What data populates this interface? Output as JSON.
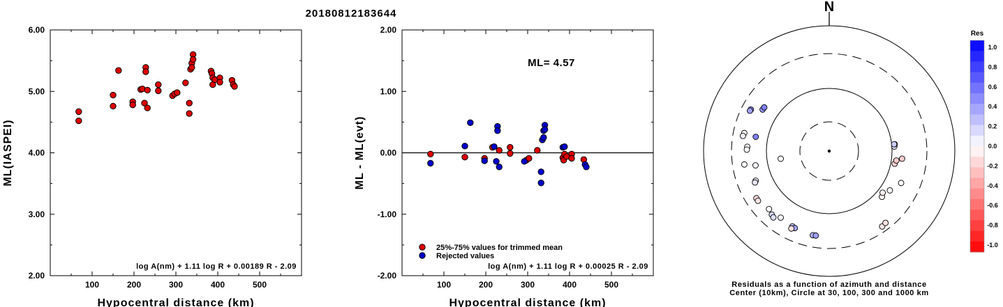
{
  "title": "20180812183644",
  "chart_data": [
    {
      "type": "scatter",
      "xlabel": "Hypocentral distance (km)",
      "ylabel": "ML(IASPEI)",
      "xlim": [
        0,
        600
      ],
      "ylim": [
        2.0,
        6.0
      ],
      "xticks": [
        "100",
        "200",
        "300",
        "400",
        "500"
      ],
      "yticks": [
        "2.00",
        "3.00",
        "4.00",
        "5.00",
        "6.00"
      ],
      "formula": "log A(nm) + 1.11 log R + 0.00189 R - 2.09",
      "point_color": "#dd0000",
      "points": [
        [
          68,
          4.67
        ],
        [
          68,
          4.52
        ],
        [
          150,
          4.94
        ],
        [
          150,
          4.76
        ],
        [
          163,
          5.34
        ],
        [
          197,
          4.83
        ],
        [
          197,
          4.78
        ],
        [
          216,
          5.03
        ],
        [
          220,
          5.04
        ],
        [
          225,
          4.81
        ],
        [
          228,
          5.39
        ],
        [
          228,
          5.32
        ],
        [
          232,
          5.02
        ],
        [
          232,
          4.73
        ],
        [
          258,
          5.11
        ],
        [
          258,
          5.01
        ],
        [
          292,
          4.93
        ],
        [
          297,
          4.96
        ],
        [
          303,
          4.98
        ],
        [
          323,
          5.14
        ],
        [
          332,
          4.81
        ],
        [
          332,
          4.64
        ],
        [
          335,
          5.36
        ],
        [
          338,
          5.46
        ],
        [
          338,
          5.39
        ],
        [
          341,
          5.6
        ],
        [
          341,
          5.52
        ],
        [
          384,
          5.33
        ],
        [
          386,
          5.29
        ],
        [
          388,
          5.22
        ],
        [
          388,
          5.11
        ],
        [
          393,
          5.19
        ],
        [
          405,
          5.22
        ],
        [
          405,
          5.15
        ],
        [
          434,
          5.18
        ],
        [
          437,
          5.11
        ],
        [
          440,
          5.08
        ]
      ]
    },
    {
      "type": "scatter",
      "xlabel": "Hypocentral distance (km)",
      "ylabel": "ML - ML(evt)",
      "xlim": [
        0,
        600
      ],
      "ylim": [
        -2.0,
        2.0
      ],
      "xticks": [
        "100",
        "200",
        "300",
        "400",
        "500"
      ],
      "yticks": [
        "-2.00",
        "-1.00",
        "0.00",
        "1.00",
        "2.00"
      ],
      "annotation": "ML= 4.57",
      "formula": "log A(nm) + 1.11 log R + 0.00025 R - 2.09",
      "legend": [
        {
          "label": "25%-75% values for trimmed mean",
          "color": "#dd0000"
        },
        {
          "label": "Rejected values",
          "color": "#0000cc"
        }
      ],
      "series": [
        {
          "name": "25%-75% values for trimmed mean",
          "color": "#dd0000",
          "points": [
            [
              68,
              -0.02
            ],
            [
              150,
              -0.07
            ],
            [
              197,
              -0.09
            ],
            [
              216,
              0.09
            ],
            [
              232,
              0.04
            ],
            [
              258,
              0.09
            ],
            [
              258,
              -0.01
            ],
            [
              297,
              -0.12
            ],
            [
              303,
              -0.09
            ],
            [
              323,
              0.04
            ],
            [
              384,
              -0.08
            ],
            [
              386,
              -0.12
            ],
            [
              388,
              -0.02
            ],
            [
              393,
              -0.06
            ],
            [
              405,
              -0.02
            ],
            [
              405,
              -0.09
            ],
            [
              434,
              -0.11
            ]
          ]
        },
        {
          "name": "Rejected values",
          "color": "#0000cc",
          "points": [
            [
              68,
              -0.17
            ],
            [
              150,
              0.11
            ],
            [
              163,
              0.49
            ],
            [
              197,
              -0.13
            ],
            [
              220,
              0.1
            ],
            [
              225,
              -0.14
            ],
            [
              228,
              0.43
            ],
            [
              228,
              0.36
            ],
            [
              232,
              -0.23
            ],
            [
              292,
              -0.14
            ],
            [
              332,
              -0.31
            ],
            [
              332,
              -0.49
            ],
            [
              335,
              0.21
            ],
            [
              338,
              0.25
            ],
            [
              338,
              0.36
            ],
            [
              341,
              0.45
            ],
            [
              341,
              0.38
            ],
            [
              384,
              0.09
            ],
            [
              388,
              0.1
            ],
            [
              437,
              -0.19
            ],
            [
              440,
              -0.23
            ]
          ]
        }
      ]
    },
    {
      "type": "scatter",
      "subtype": "polar",
      "north_label": "N",
      "caption_line1": "Residuals as a function of azimuth and distance",
      "caption_line2": "Center (10km), Circle at 30, 100, 300 and 1000 km",
      "rings": [
        {
          "label": "30",
          "style": "dashed"
        },
        {
          "label": "100",
          "style": "solid"
        },
        {
          "label": "300",
          "style": "dashed"
        },
        {
          "label": "1000",
          "style": "solid"
        }
      ],
      "colorbar": {
        "title": "Res",
        "ticks": [
          "1.0",
          "0.8",
          "0.6",
          "0.4",
          "0.2",
          "0.0",
          "-0.2",
          "-0.4",
          "-0.6",
          "-0.8",
          "-1.0"
        ],
        "positive_color": "#0000ff",
        "negative_color": "#ff0000"
      },
      "points": [
        {
          "az": 298,
          "dist": 226,
          "res": 0.45
        },
        {
          "az": 297,
          "dist": 228,
          "res": 0.36
        },
        {
          "az": 302,
          "dist": 164,
          "res": 0.4
        },
        {
          "az": 304,
          "dist": 163,
          "res": 0.49
        },
        {
          "az": 282,
          "dist": 213,
          "res": -0.02
        },
        {
          "az": 280,
          "dist": 218,
          "res": 0.05
        },
        {
          "az": 273,
          "dist": 183,
          "res": -0.02
        },
        {
          "az": 271,
          "dist": 185,
          "res": 0.02
        },
        {
          "az": 261,
          "dist": 207,
          "res": -0.02
        },
        {
          "az": 281,
          "dist": 146,
          "res": 0.49
        },
        {
          "az": 259,
          "dist": 147,
          "res": 0.03
        },
        {
          "az": 248,
          "dist": 168,
          "res": 0.02
        },
        {
          "az": 247,
          "dist": 175,
          "res": 0.1
        },
        {
          "az": 261,
          "dist": 61,
          "res": 0.0
        },
        {
          "az": 237,
          "dist": 213,
          "res": -0.14
        },
        {
          "az": 235,
          "dist": 214,
          "res": -0.09
        },
        {
          "az": 226,
          "dist": 193,
          "res": 0.0
        },
        {
          "az": 222,
          "dist": 206,
          "res": 0.16
        },
        {
          "az": 220,
          "dist": 213,
          "res": 0.12
        },
        {
          "az": 216,
          "dist": 186,
          "res": 0.04
        },
        {
          "az": 206,
          "dist": 195,
          "res": 0.25
        },
        {
          "az": 204,
          "dist": 198,
          "res": 0.36
        },
        {
          "az": 206,
          "dist": 210,
          "res": -0.12
        },
        {
          "az": 191,
          "dist": 207,
          "res": 0.3
        },
        {
          "az": 189,
          "dist": 206,
          "res": 0.38
        },
        {
          "az": 145,
          "dist": 253,
          "res": -0.09
        },
        {
          "az": 142,
          "dist": 246,
          "res": -0.11
        },
        {
          "az": 131,
          "dist": 125,
          "res": -0.04
        },
        {
          "az": 128,
          "dist": 117,
          "res": -0.05
        },
        {
          "az": 123,
          "dist": 135,
          "res": -0.02
        },
        {
          "az": 114,
          "dist": 165,
          "res": 0.02
        },
        {
          "az": 101,
          "dist": 113,
          "res": -0.18
        },
        {
          "az": 98,
          "dist": 117,
          "res": -0.2
        },
        {
          "az": 96,
          "dist": 139,
          "res": -0.19
        },
        {
          "az": 86,
          "dist": 108,
          "res": 0.1
        },
        {
          "az": 84,
          "dist": 110,
          "res": -0.03
        },
        {
          "az": 84,
          "dist": 108,
          "res": 0.2
        }
      ]
    }
  ]
}
